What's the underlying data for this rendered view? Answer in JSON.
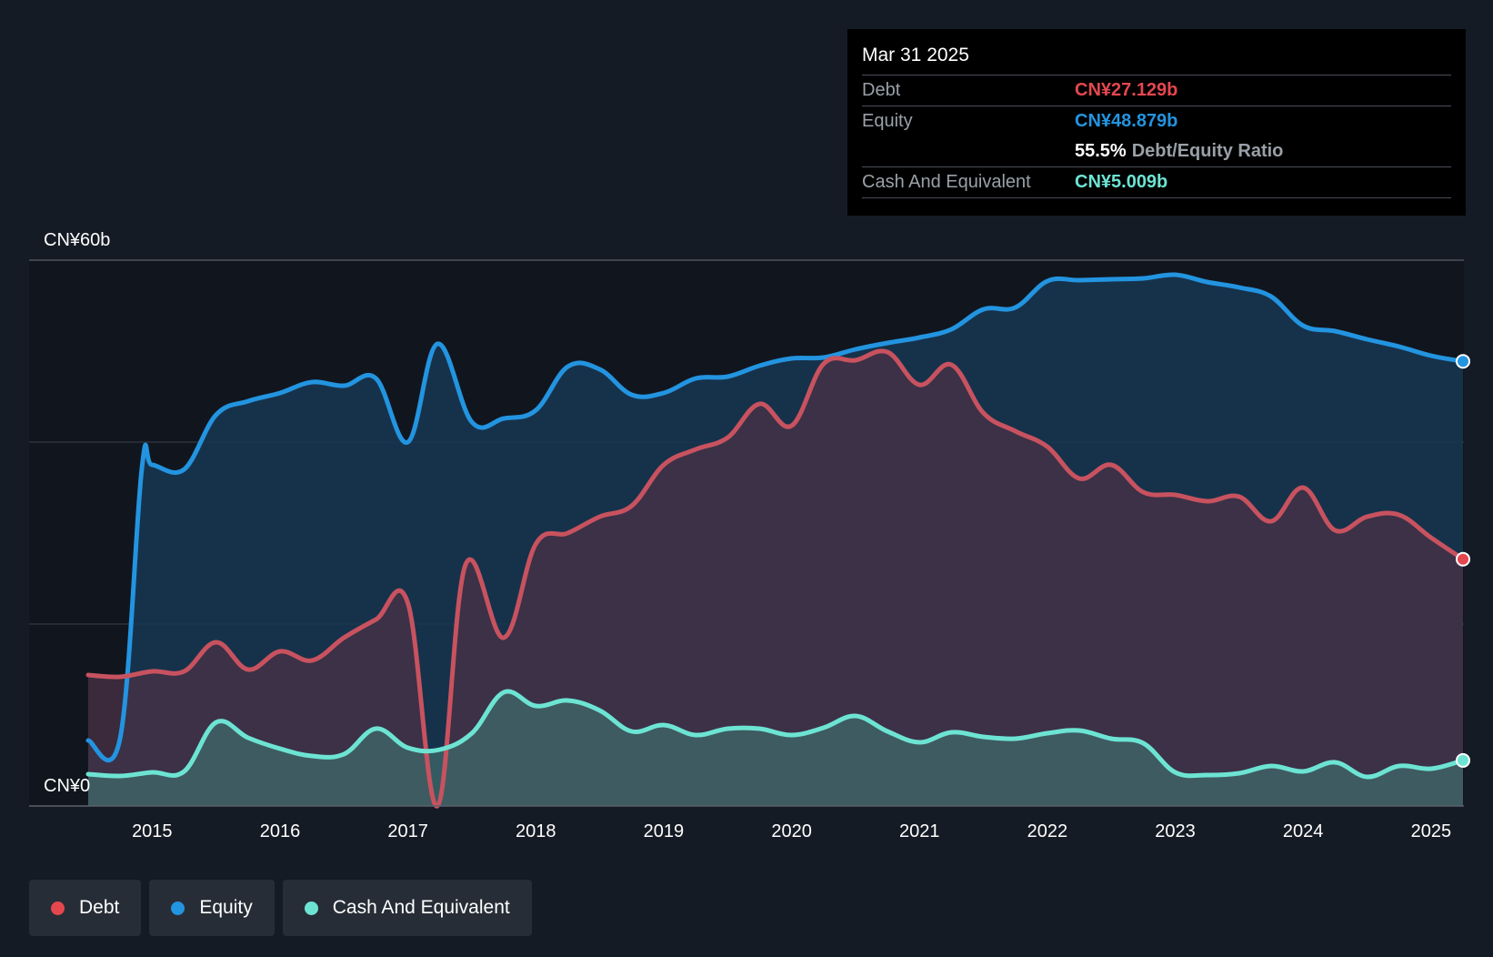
{
  "tooltip": {
    "date": "Mar 31 2025",
    "debt_label": "Debt",
    "debt_value": "CN¥27.129b",
    "equity_label": "Equity",
    "equity_value": "CN¥48.879b",
    "ratio_value": "55.5%",
    "ratio_label": "Debt/Equity Ratio",
    "cash_label": "Cash And Equivalent",
    "cash_value": "CN¥5.009b"
  },
  "legend": {
    "debt": "Debt",
    "equity": "Equity",
    "cash": "Cash And Equivalent"
  },
  "colors": {
    "debt": "#e5474f",
    "equity": "#2394e0",
    "cash": "#6de4d3",
    "background": "#151b24"
  },
  "chart_data": {
    "type": "area",
    "title": "",
    "xlabel": "",
    "ylabel": "",
    "y_top_label": "CN¥60b",
    "y_bottom_label": "CN¥0",
    "ylim": [
      0,
      60
    ],
    "xlim": [
      2014.5,
      2025.25
    ],
    "x_ticks": [
      "2015",
      "2016",
      "2017",
      "2018",
      "2019",
      "2020",
      "2021",
      "2022",
      "2023",
      "2024",
      "2025"
    ],
    "series": [
      {
        "name": "Equity",
        "points": [
          [
            2014.5,
            7.2
          ],
          [
            2014.75,
            7.5
          ],
          [
            2014.92,
            37.2
          ],
          [
            2015.0,
            37.5
          ],
          [
            2015.25,
            37.0
          ],
          [
            2015.5,
            43.0
          ],
          [
            2015.75,
            44.5
          ],
          [
            2016.0,
            45.4
          ],
          [
            2016.25,
            46.6
          ],
          [
            2016.5,
            46.2
          ],
          [
            2016.75,
            47.0
          ],
          [
            2017.0,
            40.0
          ],
          [
            2017.23,
            50.8
          ],
          [
            2017.5,
            42.2
          ],
          [
            2017.75,
            42.6
          ],
          [
            2018.0,
            43.5
          ],
          [
            2018.25,
            48.3
          ],
          [
            2018.5,
            48.0
          ],
          [
            2018.75,
            45.2
          ],
          [
            2019.0,
            45.4
          ],
          [
            2019.25,
            47.0
          ],
          [
            2019.5,
            47.2
          ],
          [
            2019.75,
            48.4
          ],
          [
            2020.0,
            49.2
          ],
          [
            2020.25,
            49.3
          ],
          [
            2020.5,
            50.2
          ],
          [
            2020.75,
            50.9
          ],
          [
            2021.0,
            51.5
          ],
          [
            2021.25,
            52.4
          ],
          [
            2021.5,
            54.6
          ],
          [
            2021.75,
            54.8
          ],
          [
            2022.0,
            57.7
          ],
          [
            2022.25,
            57.8
          ],
          [
            2022.5,
            57.9
          ],
          [
            2022.75,
            58.0
          ],
          [
            2023.0,
            58.4
          ],
          [
            2023.25,
            57.6
          ],
          [
            2023.5,
            57.0
          ],
          [
            2023.75,
            56.0
          ],
          [
            2024.0,
            52.8
          ],
          [
            2024.25,
            52.2
          ],
          [
            2024.5,
            51.3
          ],
          [
            2024.75,
            50.5
          ],
          [
            2025.0,
            49.5
          ],
          [
            2025.25,
            48.879
          ]
        ]
      },
      {
        "name": "Debt",
        "points": [
          [
            2014.5,
            14.4
          ],
          [
            2014.75,
            14.2
          ],
          [
            2015.0,
            14.8
          ],
          [
            2015.25,
            14.8
          ],
          [
            2015.5,
            18.0
          ],
          [
            2015.75,
            15.0
          ],
          [
            2016.0,
            17.0
          ],
          [
            2016.25,
            16.0
          ],
          [
            2016.5,
            18.5
          ],
          [
            2016.75,
            20.5
          ],
          [
            2017.0,
            22.3
          ],
          [
            2017.23,
            0.0
          ],
          [
            2017.45,
            26.5
          ],
          [
            2017.75,
            18.5
          ],
          [
            2018.0,
            28.8
          ],
          [
            2018.25,
            30.0
          ],
          [
            2018.5,
            31.8
          ],
          [
            2018.75,
            33.0
          ],
          [
            2019.0,
            37.5
          ],
          [
            2019.25,
            39.2
          ],
          [
            2019.5,
            40.5
          ],
          [
            2019.75,
            44.2
          ],
          [
            2020.0,
            41.8
          ],
          [
            2020.25,
            48.6
          ],
          [
            2020.5,
            49.0
          ],
          [
            2020.75,
            49.9
          ],
          [
            2021.0,
            46.3
          ],
          [
            2021.25,
            48.5
          ],
          [
            2021.5,
            43.2
          ],
          [
            2021.75,
            41.2
          ],
          [
            2022.0,
            39.5
          ],
          [
            2022.25,
            36.0
          ],
          [
            2022.5,
            37.5
          ],
          [
            2022.75,
            34.5
          ],
          [
            2023.0,
            34.2
          ],
          [
            2023.25,
            33.5
          ],
          [
            2023.5,
            34.0
          ],
          [
            2023.75,
            31.3
          ],
          [
            2024.0,
            35.0
          ],
          [
            2024.25,
            30.3
          ],
          [
            2024.5,
            31.8
          ],
          [
            2024.75,
            32.0
          ],
          [
            2025.0,
            29.5
          ],
          [
            2025.25,
            27.129
          ]
        ]
      },
      {
        "name": "Cash And Equivalent",
        "points": [
          [
            2014.5,
            3.5
          ],
          [
            2014.75,
            3.3
          ],
          [
            2015.0,
            3.7
          ],
          [
            2015.25,
            3.8
          ],
          [
            2015.5,
            9.2
          ],
          [
            2015.75,
            7.5
          ],
          [
            2016.0,
            6.3
          ],
          [
            2016.25,
            5.5
          ],
          [
            2016.5,
            5.7
          ],
          [
            2016.75,
            8.5
          ],
          [
            2017.0,
            6.4
          ],
          [
            2017.25,
            6.2
          ],
          [
            2017.5,
            8.0
          ],
          [
            2017.75,
            12.5
          ],
          [
            2018.0,
            11.0
          ],
          [
            2018.25,
            11.6
          ],
          [
            2018.5,
            10.5
          ],
          [
            2018.75,
            8.2
          ],
          [
            2019.0,
            8.9
          ],
          [
            2019.25,
            7.8
          ],
          [
            2019.5,
            8.5
          ],
          [
            2019.75,
            8.5
          ],
          [
            2020.0,
            7.8
          ],
          [
            2020.25,
            8.6
          ],
          [
            2020.5,
            9.9
          ],
          [
            2020.75,
            8.2
          ],
          [
            2021.0,
            7.0
          ],
          [
            2021.25,
            8.1
          ],
          [
            2021.5,
            7.6
          ],
          [
            2021.75,
            7.4
          ],
          [
            2022.0,
            8.0
          ],
          [
            2022.25,
            8.3
          ],
          [
            2022.5,
            7.4
          ],
          [
            2022.75,
            6.9
          ],
          [
            2023.0,
            3.7
          ],
          [
            2023.25,
            3.4
          ],
          [
            2023.5,
            3.6
          ],
          [
            2023.75,
            4.4
          ],
          [
            2024.0,
            3.8
          ],
          [
            2024.25,
            4.8
          ],
          [
            2024.5,
            3.2
          ],
          [
            2024.75,
            4.4
          ],
          [
            2025.0,
            4.1
          ],
          [
            2025.25,
            5.009
          ]
        ]
      }
    ]
  }
}
